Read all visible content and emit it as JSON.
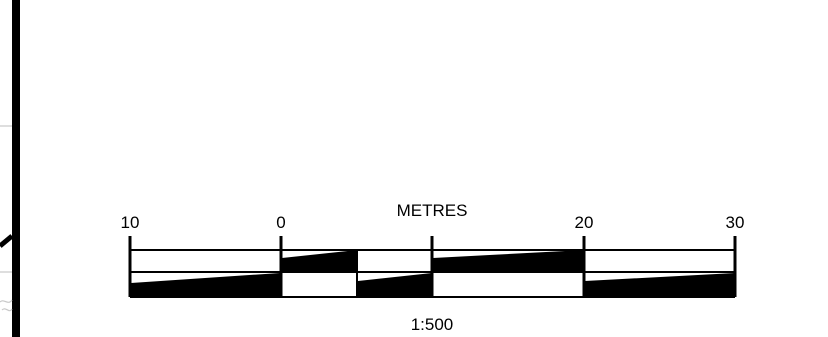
{
  "scale_bar": {
    "unit_label": "METRES",
    "ratio_label": "1:500",
    "tick_labels": [
      "10",
      "0",
      "20",
      "30"
    ]
  },
  "colors": {
    "ink": "#000000",
    "paper": "#ffffff",
    "faint_line": "#c8c8c8"
  }
}
